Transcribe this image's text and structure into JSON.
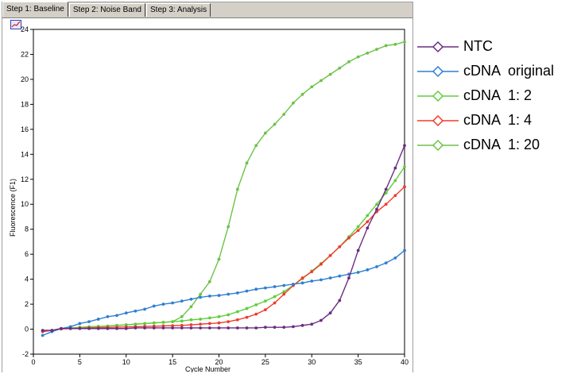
{
  "tabs": [
    {
      "label": "Step 1: Baseline",
      "active": true
    },
    {
      "label": "Step 2: Noise Band",
      "active": false
    },
    {
      "label": "Step 3: Analysis",
      "active": false
    }
  ],
  "chart_data": {
    "type": "line",
    "xlabel": "Cycle Number",
    "ylabel": "Fluorescence (F1)",
    "xlim": [
      0,
      40
    ],
    "ylim": [
      -2,
      24
    ],
    "xticks": [
      0,
      5,
      10,
      15,
      20,
      25,
      30,
      35,
      40
    ],
    "yticks": [
      -2,
      0,
      2,
      4,
      6,
      8,
      10,
      12,
      14,
      16,
      18,
      20,
      22,
      24
    ],
    "grid": false,
    "legend_position": "right",
    "x": [
      1,
      2,
      3,
      4,
      5,
      6,
      7,
      8,
      9,
      10,
      11,
      12,
      13,
      14,
      15,
      16,
      17,
      18,
      19,
      20,
      21,
      22,
      23,
      24,
      25,
      26,
      27,
      28,
      29,
      30,
      31,
      32,
      33,
      34,
      35,
      36,
      37,
      38,
      39,
      40
    ],
    "series": [
      {
        "name": "NTC",
        "color": "#6b2c82",
        "values": [
          -0.1,
          -0.1,
          0.05,
          0.05,
          0.05,
          0.05,
          0.05,
          0.05,
          0.05,
          0.05,
          0.1,
          0.1,
          0.1,
          0.1,
          0.1,
          0.1,
          0.1,
          0.1,
          0.1,
          0.1,
          0.1,
          0.1,
          0.1,
          0.1,
          0.15,
          0.15,
          0.15,
          0.2,
          0.3,
          0.4,
          0.7,
          1.3,
          2.3,
          4.1,
          6.3,
          8.1,
          9.6,
          11.2,
          12.9,
          14.7
        ]
      },
      {
        "name": "cDNA  original",
        "color": "#2f7fd0",
        "values": [
          -0.5,
          -0.2,
          0.05,
          0.2,
          0.45,
          0.6,
          0.8,
          1.0,
          1.1,
          1.3,
          1.45,
          1.6,
          1.85,
          2.0,
          2.1,
          2.25,
          2.4,
          2.55,
          2.65,
          2.7,
          2.8,
          2.9,
          3.05,
          3.2,
          3.3,
          3.4,
          3.5,
          3.6,
          3.7,
          3.85,
          3.95,
          4.1,
          4.25,
          4.4,
          4.55,
          4.75,
          5.0,
          5.3,
          5.7,
          6.3
        ]
      },
      {
        "name": "cDNA  1: 2",
        "color": "#5fcf3a",
        "values": [
          -0.15,
          -0.1,
          0.05,
          0.1,
          0.15,
          0.2,
          0.22,
          0.25,
          0.3,
          0.35,
          0.4,
          0.45,
          0.5,
          0.55,
          0.6,
          0.65,
          0.75,
          0.8,
          0.9,
          1.0,
          1.15,
          1.4,
          1.65,
          1.95,
          2.25,
          2.6,
          3.0,
          3.5,
          4.05,
          4.65,
          5.25,
          5.9,
          6.6,
          7.4,
          8.2,
          9.1,
          10.0,
          10.9,
          11.9,
          13.0
        ]
      },
      {
        "name": "cDNA  1: 4",
        "color": "#f03c2a",
        "values": [
          -0.2,
          -0.1,
          0.02,
          0.05,
          0.08,
          0.1,
          0.12,
          0.14,
          0.16,
          0.18,
          0.2,
          0.22,
          0.24,
          0.26,
          0.28,
          0.3,
          0.35,
          0.4,
          0.45,
          0.5,
          0.6,
          0.75,
          0.95,
          1.2,
          1.55,
          2.1,
          2.8,
          3.5,
          4.1,
          4.6,
          5.2,
          5.9,
          6.6,
          7.3,
          7.9,
          8.6,
          9.4,
          10.0,
          10.7,
          11.4
        ]
      },
      {
        "name": "cDNA  1: 20",
        "color": "#6cc24a",
        "values": [
          -0.1,
          -0.1,
          0.05,
          0.1,
          0.1,
          0.15,
          0.2,
          0.25,
          0.3,
          0.35,
          0.4,
          0.45,
          0.5,
          0.55,
          0.6,
          1.0,
          1.8,
          2.8,
          3.8,
          5.6,
          8.2,
          11.2,
          13.3,
          14.7,
          15.7,
          16.4,
          17.2,
          18.1,
          18.8,
          19.4,
          19.9,
          20.4,
          20.9,
          21.4,
          21.8,
          22.1,
          22.4,
          22.7,
          22.8,
          23.0
        ]
      }
    ]
  }
}
